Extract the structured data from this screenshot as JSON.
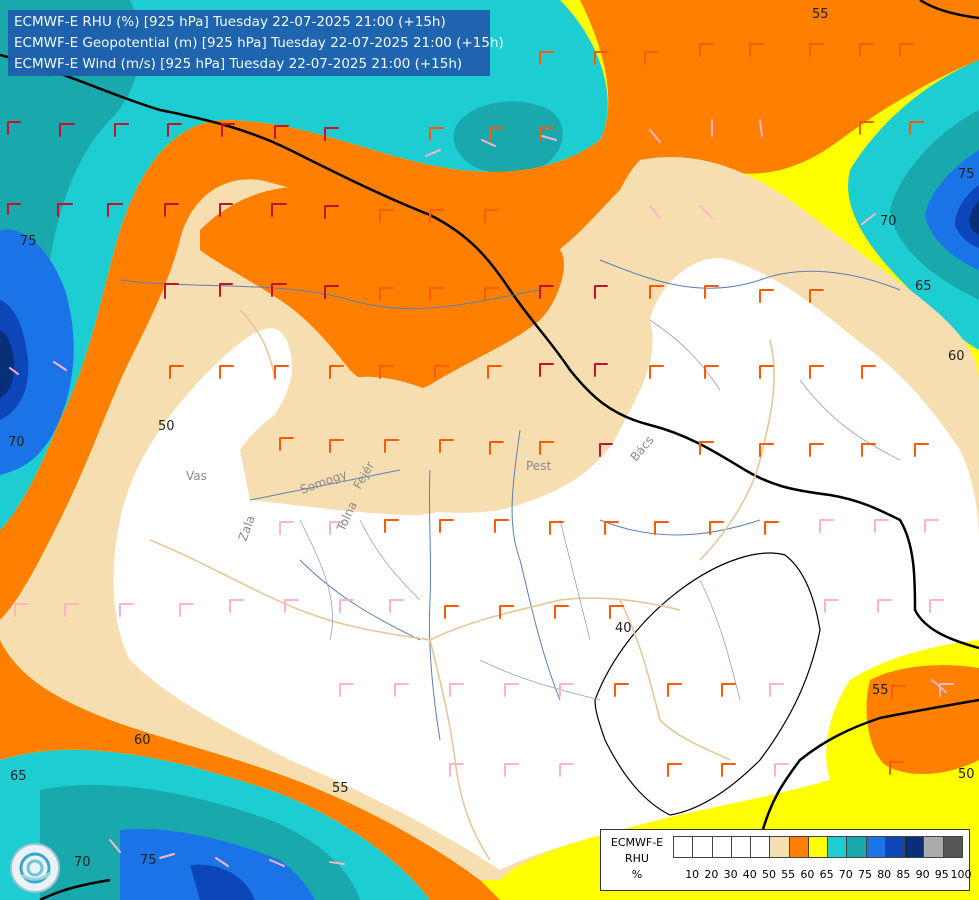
{
  "header": {
    "lines": [
      "ECMWF-E RHU (%) [925 hPa] Tuesday 22-07-2025 21:00 (+15h)",
      "ECMWF-E Geopotential (m) [925 hPa] Tuesday 22-07-2025 21:00 (+15h)",
      "ECMWF-E Wind (m/s) [925 hPa] Tuesday 22-07-2025 21:00 (+15h)"
    ]
  },
  "legend": {
    "title_lines": [
      "ECMWF-E",
      "RHU",
      "%"
    ],
    "ticks": [
      "10",
      "20",
      "30",
      "40",
      "50",
      "55",
      "60",
      "65",
      "70",
      "75",
      "80",
      "85",
      "90",
      "95",
      "100"
    ],
    "colors": [
      "#ffffff",
      "#ffffff",
      "#ffffff",
      "#ffffff",
      "#ffffff",
      "#f6deb0",
      "#ff8000",
      "#ffff00",
      "#1ecdd2",
      "#19a8ac",
      "#1a74e8",
      "#0c46b8",
      "#082f78",
      "#aaaaaa",
      "#555555"
    ]
  },
  "palette": {
    "cream": "#f6deb0",
    "orange": "#ff8000",
    "yellow": "#ffff00",
    "cyan": "#1ecdd2",
    "teal": "#19a8ac",
    "blue": "#1a74e8",
    "darkblue": "#0c46b8",
    "navy": "#082f78",
    "white": "#ffffff",
    "border": "#e4c79a",
    "river": "#5b7fb5",
    "contour": "#000000"
  },
  "contour_labels": [
    "55",
    "70",
    "75",
    "65",
    "60",
    "70",
    "75",
    "50",
    "40",
    "60",
    "65",
    "55",
    "70",
    "75",
    "55",
    "50"
  ],
  "place_labels": [
    "Vas",
    "Zala",
    "Somogy",
    "Tolna",
    "Fejér",
    "Pest",
    "Bács"
  ],
  "wind_barbs": {
    "legend_units": "m/s"
  }
}
